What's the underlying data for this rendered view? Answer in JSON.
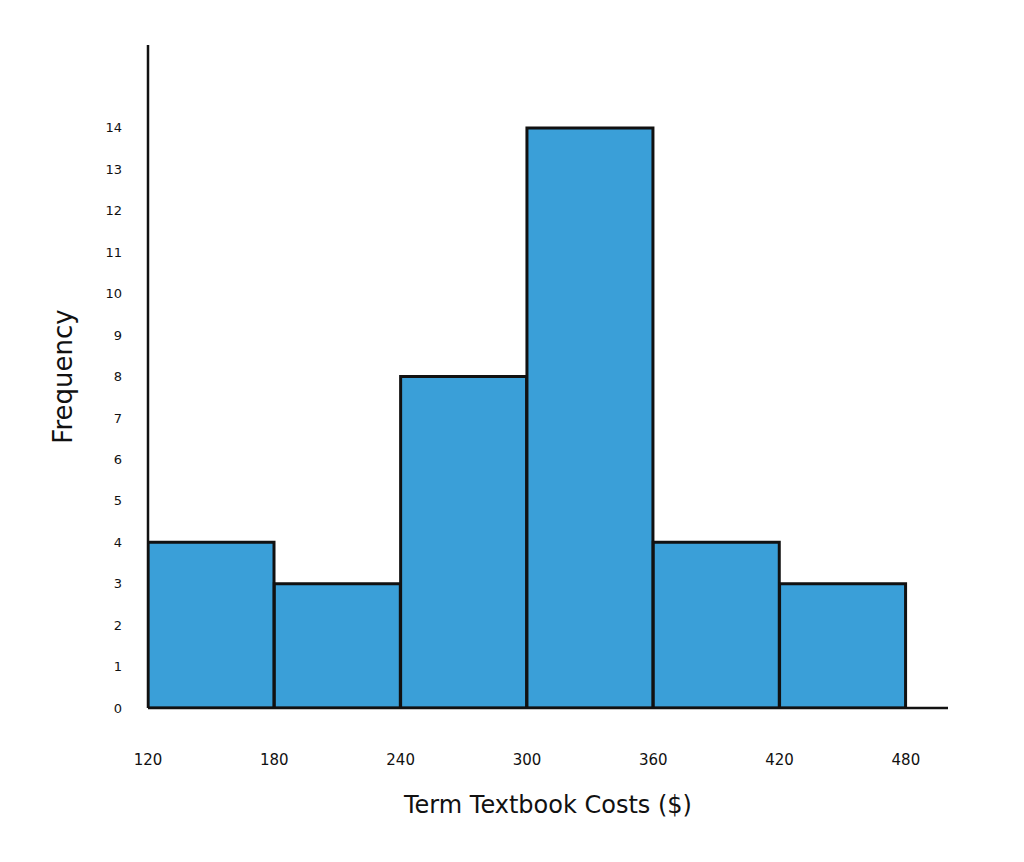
{
  "chart_data": {
    "type": "histogram",
    "bins": [
      120,
      180,
      240,
      300,
      360,
      420,
      480
    ],
    "values": [
      4,
      3,
      8,
      14,
      4,
      3
    ],
    "xlabel": "Term Textbook Costs ($)",
    "ylabel": "Frequency",
    "xlim": [
      120,
      500
    ],
    "xticks": [
      120,
      180,
      240,
      300,
      360,
      420,
      480
    ],
    "ylim": [
      0,
      16
    ],
    "yticks": [
      0,
      1,
      2,
      3,
      4,
      5,
      6,
      7,
      8,
      9,
      10,
      11,
      12,
      13,
      14
    ],
    "color": "#3a9fd8",
    "grid": false
  }
}
